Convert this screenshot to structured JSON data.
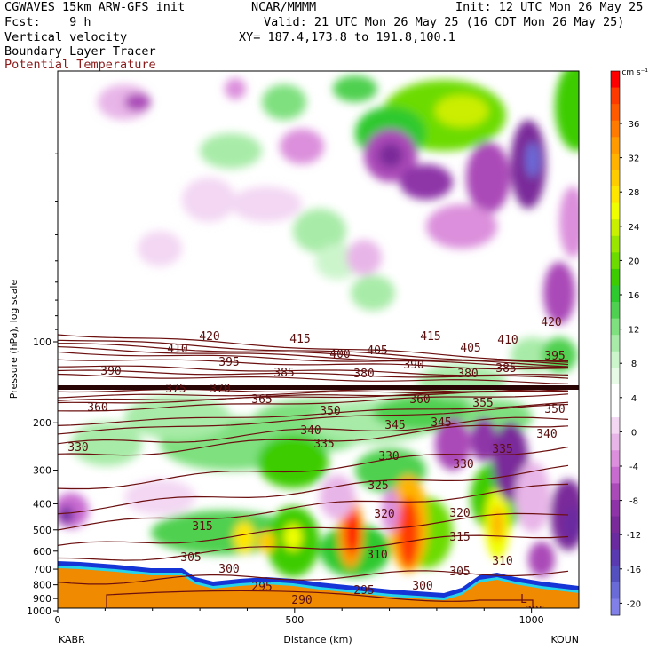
{
  "header": {
    "model_line": "CGWAVES 15km ARW-GFS init",
    "org": "NCAR/MMMM",
    "init": "Init: 12 UTC Mon 26 May 25",
    "fcst": "Fcst:    9 h",
    "valid": "Valid: 21 UTC Mon 26 May 25 (16 CDT Mon 26 May 25)",
    "field1": "Vertical velocity",
    "field2": "Boundary Layer Tracer",
    "field3": "Potential Temperature",
    "xy": "XY= 187.4,173.8 to 191.8,100.1"
  },
  "colors": {
    "theta_contour": "#6b0f0f",
    "terrain": "#f08a00",
    "title_red": "#8b1a1a"
  },
  "chart_data": {
    "type": "heatmap",
    "title": "Vertical velocity",
    "xlabel": "Distance (km)",
    "ylabel": "Pressure (hPa), log scale",
    "x_ticks": [
      "0",
      "500",
      "1000"
    ],
    "x_range": [
      0,
      1100
    ],
    "x_endpoints": {
      "left": "KABR",
      "right": "KOUN"
    },
    "y_ticks": [
      "100",
      "200",
      "300",
      "400",
      "500",
      "600",
      "700",
      "800",
      "900",
      "1000"
    ],
    "y_scale": "log",
    "colorbar": {
      "unit": "cm s⁻¹",
      "labels": [
        "36",
        "32",
        "28",
        "24",
        "20",
        "16",
        "12",
        "8",
        "4",
        "0",
        "-4",
        "-8",
        "-12",
        "-16",
        "-20"
      ],
      "colors": [
        "#ff0000",
        "#ff3a00",
        "#ff5a00",
        "#ff7a00",
        "#ff9a00",
        "#ffb300",
        "#ffcc00",
        "#ffe600",
        "#f0ff00",
        "#c8f000",
        "#99e600",
        "#6cdc00",
        "#3ccc00",
        "#2ec92e",
        "#50d050",
        "#7fe07f",
        "#a8eba8",
        "#ccf5cc",
        "#e6fae6",
        "#ffffff",
        "#ffffff",
        "#f3d7f3",
        "#e8b5e8",
        "#dc8fdc",
        "#c86bd0",
        "#aa4ab8",
        "#8e34a8",
        "#7a2a9a",
        "#6a2aa0",
        "#5a3ab0",
        "#5550c0",
        "#6a6ad8",
        "#8080e8"
      ]
    },
    "theta_contours": [
      {
        "value": 290,
        "label": "290"
      },
      {
        "value": 295,
        "label": "295"
      },
      {
        "value": 300,
        "label": "300"
      },
      {
        "value": 305,
        "label": "305"
      },
      {
        "value": 310,
        "label": "310"
      },
      {
        "value": 315,
        "label": "315"
      },
      {
        "value": 320,
        "label": "320"
      },
      {
        "value": 325,
        "label": "325"
      },
      {
        "value": 330,
        "label": "330"
      },
      {
        "value": 335,
        "label": "335"
      },
      {
        "value": 340,
        "label": "340"
      },
      {
        "value": 345,
        "label": "345"
      },
      {
        "value": 350,
        "label": "350"
      },
      {
        "value": 355,
        "label": "355"
      },
      {
        "value": 360,
        "label": "360"
      },
      {
        "value": 365,
        "label": "365"
      },
      {
        "value": 370,
        "label": "370"
      },
      {
        "value": 375,
        "label": "375"
      },
      {
        "value": 380,
        "label": "380"
      },
      {
        "value": 385,
        "label": "385"
      },
      {
        "value": 390,
        "label": "390"
      },
      {
        "value": 395,
        "label": "395"
      },
      {
        "value": 400,
        "label": "400"
      },
      {
        "value": 405,
        "label": "405"
      },
      {
        "value": 410,
        "label": "410"
      },
      {
        "value": 415,
        "label": "415"
      },
      {
        "value": 420,
        "label": "420"
      }
    ],
    "terrain_label": "L",
    "grid": false
  }
}
